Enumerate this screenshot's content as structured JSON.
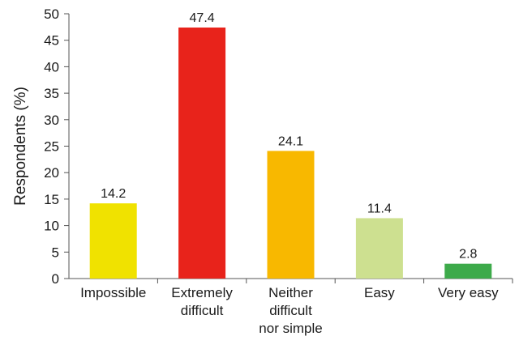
{
  "chart_data": {
    "type": "bar",
    "title": "",
    "xlabel": "",
    "ylabel": "Respondents (%)",
    "ylim": [
      0,
      50
    ],
    "ytick_step": 5,
    "grid": false,
    "categories": [
      [
        "Impossible"
      ],
      [
        "Extremely",
        "difficult"
      ],
      [
        "Neither",
        "difficult",
        "nor simple"
      ],
      [
        "Easy"
      ],
      [
        "Very easy"
      ]
    ],
    "values": [
      14.2,
      47.4,
      24.1,
      11.4,
      2.8
    ],
    "data_labels": [
      "14.2",
      "47.4",
      "24.1",
      "11.4",
      "2.8"
    ],
    "colors": [
      "#f0e200",
      "#e8231b",
      "#f8b800",
      "#cde090",
      "#3daa4a"
    ]
  }
}
